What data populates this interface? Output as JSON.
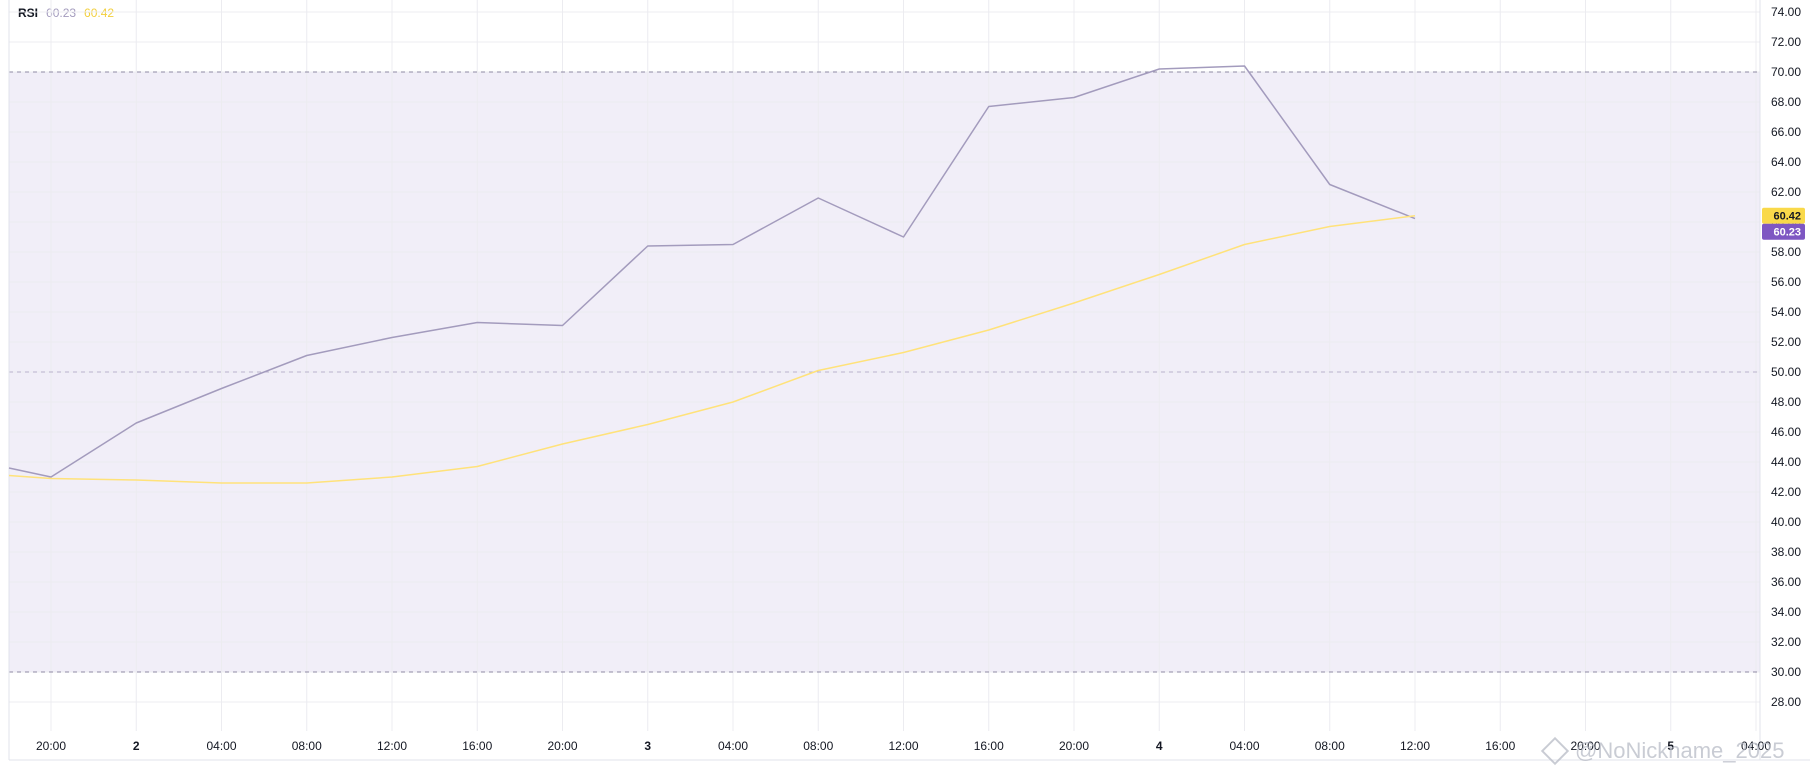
{
  "legend": {
    "name": "RSI",
    "rsi_value": "60.23",
    "ma_value": "60.42"
  },
  "watermark": "@NoNickname_2025",
  "colors": {
    "rsi": "#a39bbd",
    "ma": "#ffe27a",
    "band": "#f1eef8",
    "rsi_badge": "#7e57c2",
    "ma_badge": "#f9d94a"
  },
  "chart_data": {
    "type": "line",
    "x": [
      "20:00",
      "2",
      "04:00",
      "08:00",
      "12:00",
      "16:00",
      "20:00",
      "3",
      "04:00",
      "08:00",
      "12:00",
      "16:00",
      "20:00",
      "4",
      "04:00",
      "08:00",
      "12:00",
      "16:00",
      "20:00",
      "5",
      "04:00"
    ],
    "x_bold": [
      "2",
      "3",
      "4",
      "5"
    ],
    "ylim": [
      27,
      75
    ],
    "yticks": [
      "74.00",
      "72.00",
      "70.00",
      "68.00",
      "66.00",
      "64.00",
      "62.00",
      "60.00",
      "58.00",
      "56.00",
      "54.00",
      "52.00",
      "50.00",
      "48.00",
      "46.00",
      "44.00",
      "42.00",
      "40.00",
      "38.00",
      "36.00",
      "34.00",
      "32.00",
      "30.00",
      "28.00"
    ],
    "levels": {
      "upper": 70,
      "middle": 50,
      "lower": 30
    },
    "series": [
      {
        "name": "RSI",
        "points": [
          [
            -0.5,
            43.6
          ],
          [
            0,
            43.0
          ],
          [
            1,
            46.6
          ],
          [
            2,
            48.9
          ],
          [
            3,
            51.1
          ],
          [
            4,
            52.3
          ],
          [
            5,
            53.3
          ],
          [
            6,
            53.1
          ],
          [
            7,
            58.4
          ],
          [
            8,
            58.5
          ],
          [
            9,
            61.6
          ],
          [
            10,
            59.0
          ],
          [
            11,
            67.7
          ],
          [
            12,
            68.3
          ],
          [
            13,
            70.2
          ],
          [
            14,
            70.4
          ],
          [
            15,
            62.5
          ],
          [
            16,
            60.23
          ]
        ]
      },
      {
        "name": "MA",
        "points": [
          [
            -0.5,
            43.1
          ],
          [
            0,
            42.9
          ],
          [
            1,
            42.8
          ],
          [
            2,
            42.6
          ],
          [
            3,
            42.6
          ],
          [
            4,
            43.0
          ],
          [
            5,
            43.7
          ],
          [
            6,
            45.2
          ],
          [
            7,
            46.5
          ],
          [
            8,
            48.0
          ],
          [
            9,
            50.1
          ],
          [
            10,
            51.3
          ],
          [
            11,
            52.8
          ],
          [
            12,
            54.6
          ],
          [
            13,
            56.5
          ],
          [
            14,
            58.5
          ],
          [
            15,
            59.7
          ],
          [
            16,
            60.42
          ]
        ]
      }
    ],
    "last_values": {
      "rsi": "60.23",
      "ma": "60.42"
    }
  }
}
